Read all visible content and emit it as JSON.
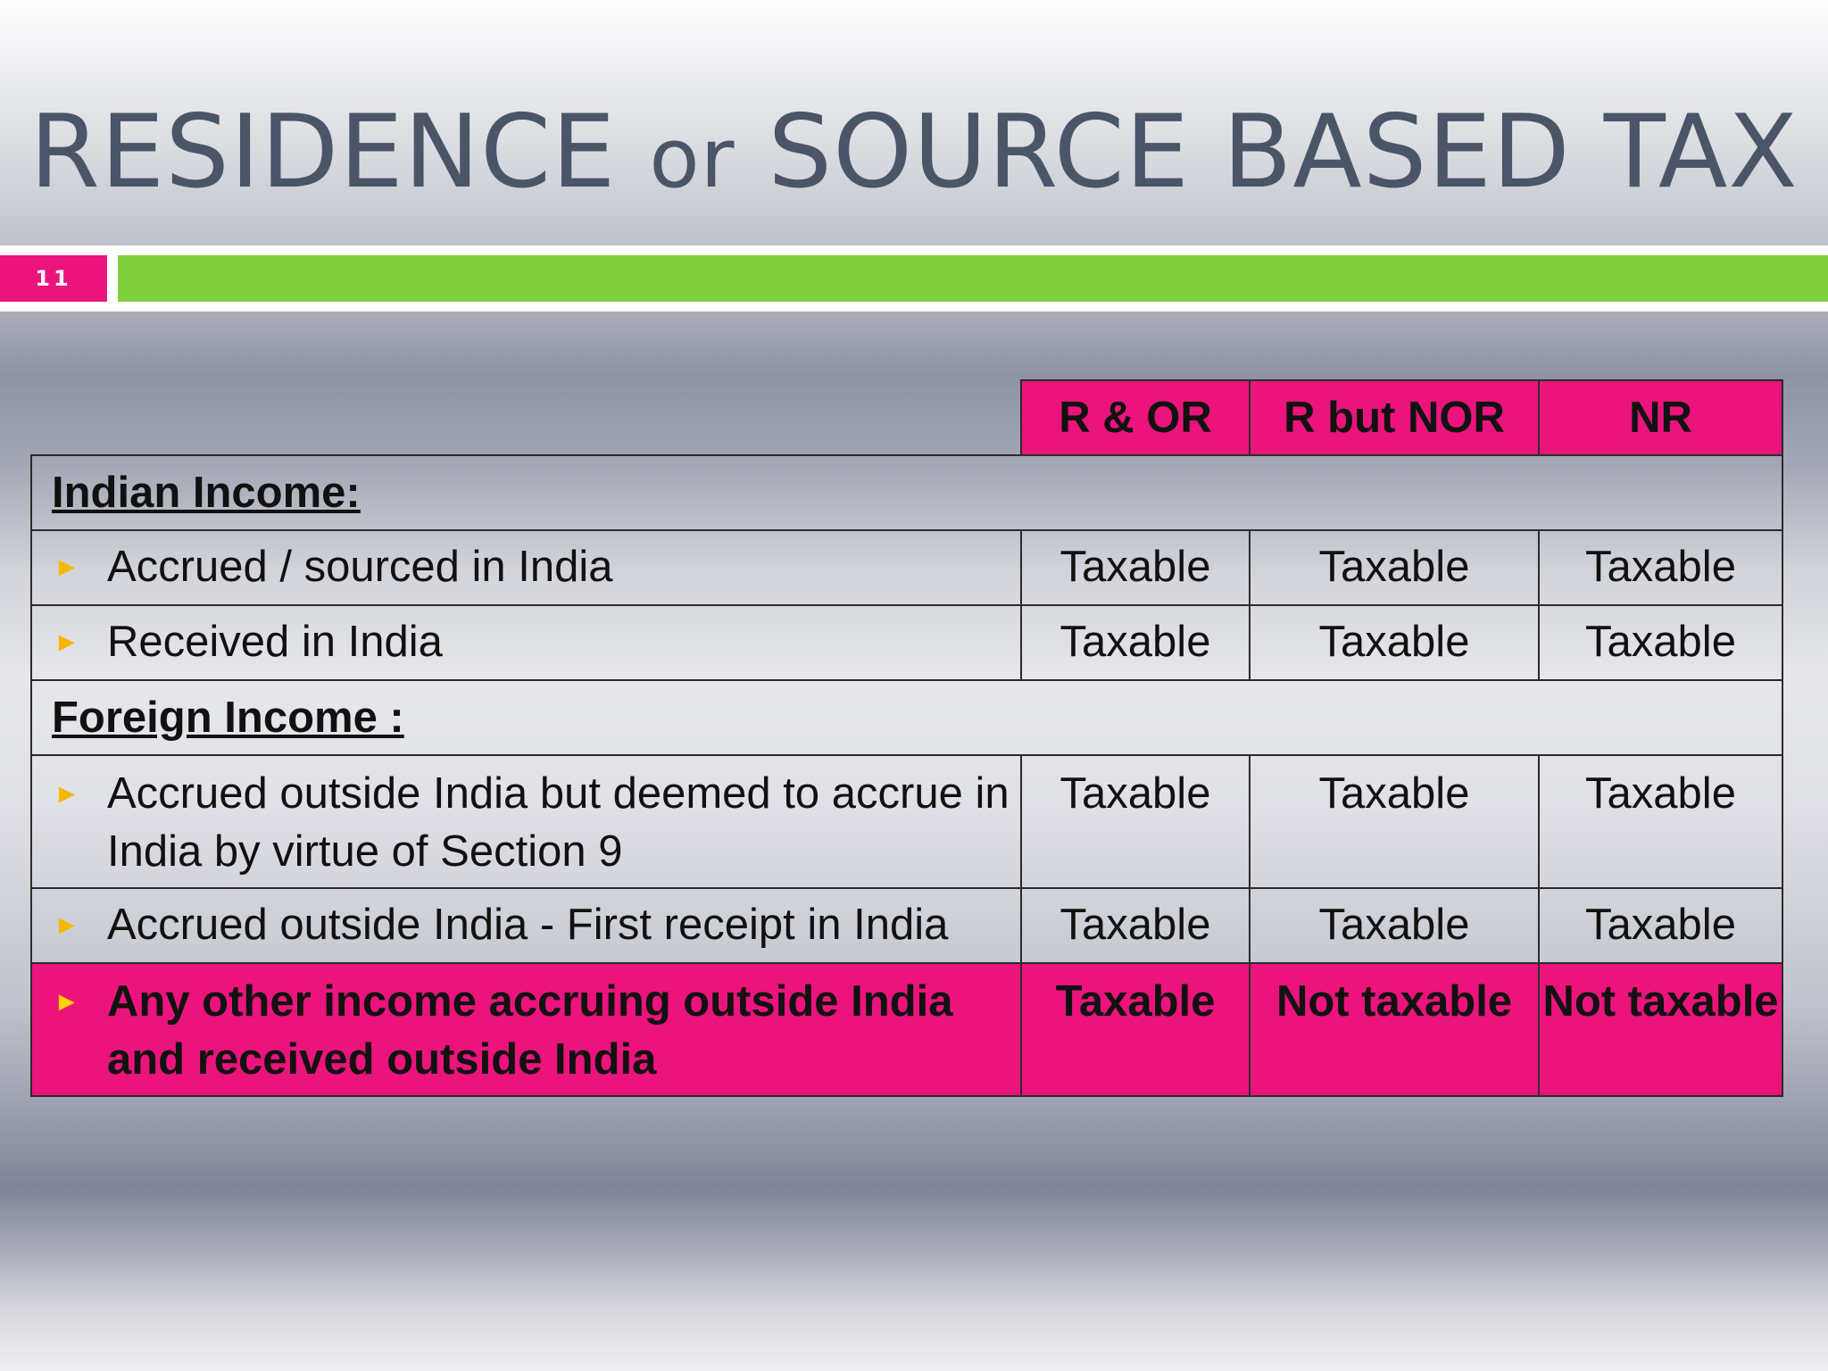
{
  "slide": {
    "title_main_1": "RESIDENCE",
    "title_small": "or",
    "title_main_2": "SOURCE BASED TAX",
    "number": "11"
  },
  "colors": {
    "accent_pink": "#ea147c",
    "accent_green": "#80d040",
    "title_text": "#4a5568",
    "bullet": "#f5b800"
  },
  "table": {
    "columns": [
      "R & OR",
      "R but NOR",
      "NR"
    ],
    "sections": [
      {
        "heading": "Indian Income:",
        "rows": [
          {
            "label": "Accrued / sourced in India",
            "values": [
              "Taxable",
              "Taxable",
              "Taxable"
            ]
          },
          {
            "label": "Received in India",
            "values": [
              "Taxable",
              "Taxable",
              "Taxable"
            ]
          }
        ]
      },
      {
        "heading": "Foreign Income :",
        "rows": [
          {
            "label": "Accrued outside India but deemed to accrue in India by virtue of Section 9",
            "values": [
              "Taxable",
              "Taxable",
              "Taxable"
            ]
          },
          {
            "label": "Accrued outside India - First receipt in India",
            "values": [
              "Taxable",
              "Taxable",
              "Taxable"
            ]
          },
          {
            "label": "Any other income accruing outside India and received outside India",
            "values": [
              "Taxable",
              "Not taxable",
              "Not taxable"
            ],
            "highlighted": true
          }
        ]
      }
    ],
    "bullet_icon": "triangle-right-icon"
  }
}
